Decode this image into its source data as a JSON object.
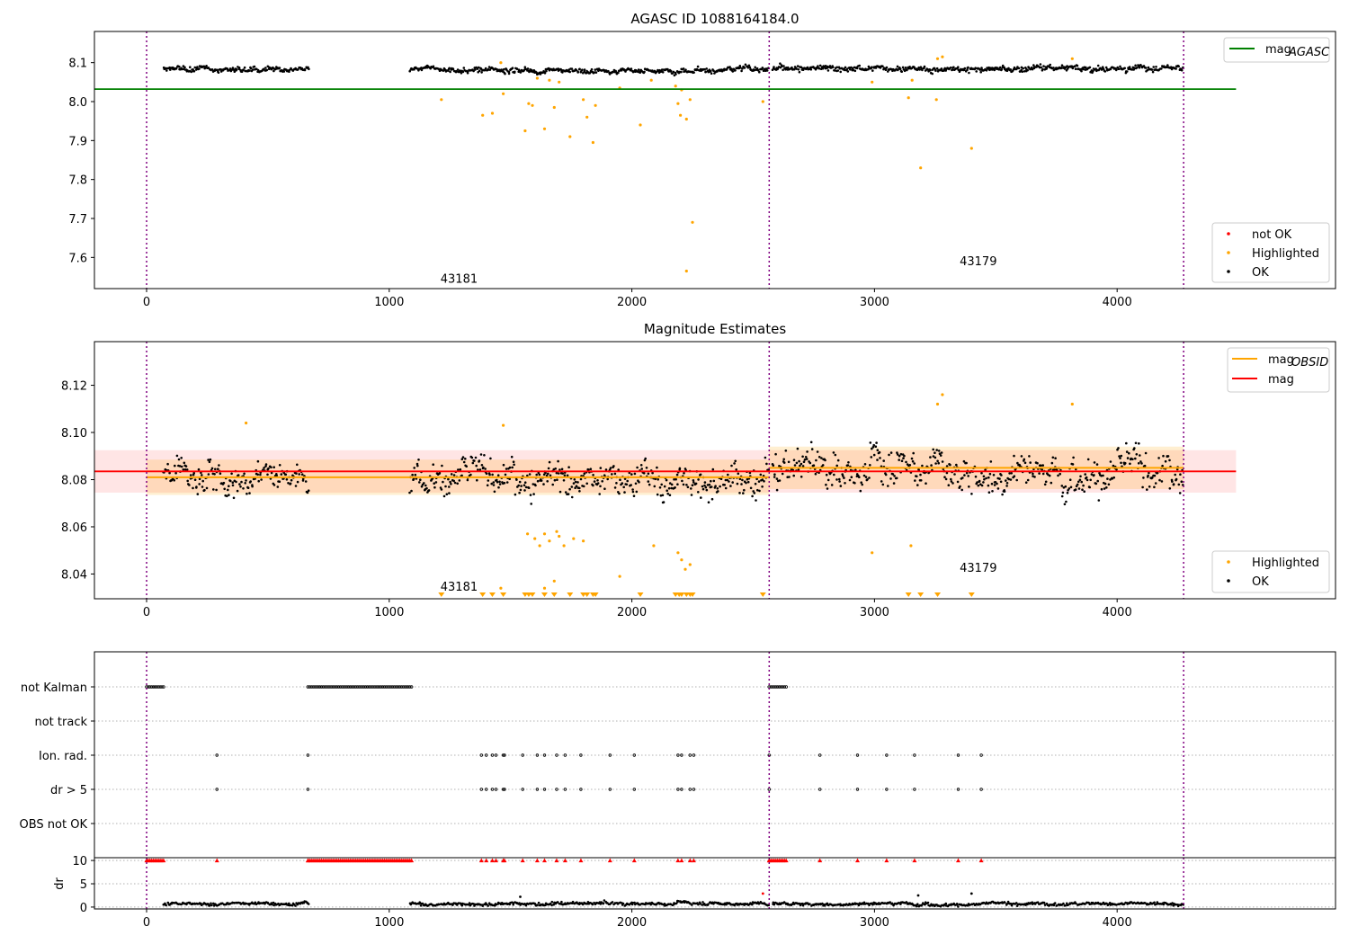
{
  "colors": {
    "ok": "#000000",
    "highlighted": "#ffa500",
    "not_ok": "#ff0000",
    "mag_agasc": "#008000",
    "mag_obsid": "#ffa500",
    "mag": "#ff0000",
    "obs_boundary": "#800080"
  },
  "chart_data": [
    {
      "type": "scatter",
      "title": "AGASC ID 1088164184.0",
      "xlim": [
        -215,
        4900
      ],
      "ylim": [
        7.52,
        8.18
      ],
      "xticks": [
        "0",
        "1000",
        "2000",
        "3000",
        "4000"
      ],
      "yticks": [
        "7.6",
        "7.7",
        "7.8",
        "7.9",
        "8.0",
        "8.1"
      ],
      "obs_boundaries": [
        0,
        2566,
        4274
      ],
      "annotations": [
        {
          "text": "43181",
          "x": 1200,
          "y": 7.535
        },
        {
          "text": "43179",
          "x": 3340,
          "y": 7.58
        }
      ],
      "hlines": [
        {
          "name": "mag_AGASC",
          "y": 8.032,
          "x0": -215,
          "x1": 4490
        }
      ],
      "ok_segments": [
        {
          "x0": 70,
          "x1": 670,
          "mean": 8.083,
          "noise": 0.007
        },
        {
          "x0": 1085,
          "x1": 2566,
          "mean": 8.08,
          "noise": 0.007
        },
        {
          "x0": 2580,
          "x1": 4274,
          "mean": 8.085,
          "noise": 0.008
        }
      ],
      "highlighted_points": [
        [
          1215,
          8.005
        ],
        [
          1385,
          7.965
        ],
        [
          1425,
          7.97
        ],
        [
          1460,
          8.1
        ],
        [
          1470,
          8.02
        ],
        [
          1560,
          7.925
        ],
        [
          1575,
          7.995
        ],
        [
          1590,
          7.99
        ],
        [
          1610,
          8.06
        ],
        [
          1640,
          7.93
        ],
        [
          1660,
          8.055
        ],
        [
          1680,
          7.985
        ],
        [
          1700,
          8.05
        ],
        [
          1745,
          7.91
        ],
        [
          1800,
          8.005
        ],
        [
          1815,
          7.96
        ],
        [
          1840,
          7.895
        ],
        [
          1850,
          7.99
        ],
        [
          1950,
          8.035
        ],
        [
          2035,
          7.94
        ],
        [
          2080,
          8.055
        ],
        [
          2180,
          8.04
        ],
        [
          2190,
          7.995
        ],
        [
          2200,
          7.965
        ],
        [
          2205,
          8.03
        ],
        [
          2225,
          7.955
        ],
        [
          2240,
          8.005
        ],
        [
          2250,
          7.69
        ],
        [
          2225,
          7.565
        ],
        [
          2540,
          8.0
        ],
        [
          2990,
          8.05
        ],
        [
          3140,
          8.01
        ],
        [
          3155,
          8.055
        ],
        [
          3255,
          8.005
        ],
        [
          3260,
          8.11
        ],
        [
          3280,
          8.115
        ],
        [
          3190,
          7.83
        ],
        [
          3400,
          7.88
        ],
        [
          3815,
          8.11
        ]
      ],
      "legend": {
        "line_entries": [
          {
            "label": "mag",
            "subscript": "AGASC"
          }
        ],
        "point_entries": [
          {
            "label": "not OK",
            "color": "#ff0000"
          },
          {
            "label": "Highlighted",
            "color": "#ffa500"
          },
          {
            "label": "OK",
            "color": "#000000"
          }
        ]
      }
    },
    {
      "type": "scatter",
      "title": "Magnitude Estimates",
      "xlim": [
        -215,
        4900
      ],
      "ylim": [
        8.0295,
        8.1385
      ],
      "xticks": [
        "0",
        "1000",
        "2000",
        "3000",
        "4000"
      ],
      "yticks": [
        "8.04",
        "8.06",
        "8.08",
        "8.10",
        "8.12"
      ],
      "obs_boundaries": [
        0,
        2566,
        4274
      ],
      "annotations": [
        {
          "text": "43181",
          "x": 1200,
          "y": 8.033
        },
        {
          "text": "43179",
          "x": 3340,
          "y": 8.041
        }
      ],
      "mag": {
        "value": 8.0835,
        "band": [
          8.0745,
          8.0925
        ],
        "x0": 0,
        "x1": 4490
      },
      "mag_obsid": [
        {
          "value": 8.081,
          "band": [
            8.0735,
            8.0885
          ],
          "x0": 0,
          "x1": 2566
        },
        {
          "value": 8.085,
          "band": [
            8.076,
            8.094
          ],
          "x0": 2566,
          "x1": 4274
        }
      ],
      "ok_segments": [
        {
          "x0": 70,
          "x1": 670,
          "mean": 8.082,
          "noise": 0.007
        },
        {
          "x0": 1085,
          "x1": 2566,
          "mean": 8.081,
          "noise": 0.007
        },
        {
          "x0": 2580,
          "x1": 4274,
          "mean": 8.084,
          "noise": 0.008
        }
      ],
      "highlighted_points": [
        [
          410,
          8.104
        ],
        [
          1460,
          8.034
        ],
        [
          1470,
          8.103
        ],
        [
          1570,
          8.057
        ],
        [
          1600,
          8.055
        ],
        [
          1620,
          8.052
        ],
        [
          1640,
          8.057
        ],
        [
          1660,
          8.054
        ],
        [
          1690,
          8.058
        ],
        [
          1700,
          8.056
        ],
        [
          1720,
          8.052
        ],
        [
          1760,
          8.055
        ],
        [
          1800,
          8.054
        ],
        [
          1950,
          8.039
        ],
        [
          2090,
          8.052
        ],
        [
          2190,
          8.049
        ],
        [
          2205,
          8.046
        ],
        [
          2220,
          8.042
        ],
        [
          2240,
          8.044
        ],
        [
          2990,
          8.049
        ],
        [
          3150,
          8.052
        ],
        [
          3260,
          8.112
        ],
        [
          3280,
          8.116
        ],
        [
          3815,
          8.112
        ],
        [
          1640,
          8.034
        ],
        [
          1680,
          8.037
        ]
      ],
      "clipped_markers_x": [
        1215,
        1385,
        1425,
        1470,
        1560,
        1575,
        1590,
        1640,
        1680,
        1745,
        1800,
        1815,
        1840,
        1850,
        2035,
        2180,
        2195,
        2205,
        2225,
        2240,
        2250,
        2540,
        3140,
        3190,
        3260,
        3400
      ],
      "legend": {
        "line_entries": [
          {
            "label": "mag",
            "subscript": "OBSID",
            "color": "#ffa500"
          },
          {
            "label": "mag",
            "subscript": "",
            "color": "#ff0000"
          }
        ],
        "point_entries": [
          {
            "label": "Highlighted",
            "color": "#ffa500"
          },
          {
            "label": "OK",
            "color": "#000000"
          }
        ]
      }
    },
    {
      "type": "scatter",
      "title": "",
      "xlim": [
        -215,
        4900
      ],
      "flag_rows": [
        "not Kalman",
        "not track",
        "Ion. rad.",
        "dr > 5",
        "OBS not OK"
      ],
      "obs_boundaries": [
        0,
        2566,
        4274
      ],
      "not_kalman_ranges": [
        [
          0,
          75
        ],
        [
          665,
          1095
        ],
        [
          2566,
          2640
        ]
      ],
      "ion_rad_x": [
        290,
        665,
        1380,
        1400,
        1425,
        1440,
        1470,
        1475,
        1550,
        1610,
        1640,
        1690,
        1725,
        1790,
        1910,
        2010,
        2190,
        2205,
        2240,
        2255,
        2566,
        2775,
        2930,
        3050,
        3165,
        3345,
        3440
      ],
      "dr_gt_5_x": [
        290,
        665,
        1380,
        1400,
        1425,
        1440,
        1470,
        1475,
        1550,
        1610,
        1640,
        1690,
        1725,
        1790,
        1910,
        2010,
        2190,
        2205,
        2240,
        2255,
        2566,
        2775,
        2930,
        3050,
        3165,
        3345,
        3440
      ]
    },
    {
      "type": "scatter",
      "title": "",
      "ylabel": "dr",
      "xlim": [
        -215,
        4900
      ],
      "ylim": [
        -0.4,
        10.6
      ],
      "xticks": [
        "0",
        "1000",
        "2000",
        "3000",
        "4000"
      ],
      "yticks": [
        "0",
        "5",
        "10"
      ],
      "obs_boundaries": [
        0,
        2566,
        4274
      ],
      "clipped_value": 10,
      "ok_segments": [
        {
          "x0": 70,
          "x1": 670,
          "mean": 0.7,
          "noise": 0.35
        },
        {
          "x0": 1085,
          "x1": 2566,
          "mean": 0.7,
          "noise": 0.35
        },
        {
          "x0": 2580,
          "x1": 4274,
          "mean": 0.7,
          "noise": 0.35
        }
      ],
      "outlier_points": [
        [
          2540,
          2.9
        ],
        [
          3180,
          2.5
        ],
        [
          3400,
          2.9
        ],
        [
          1540,
          2.2
        ]
      ],
      "clipped_ranges": [
        [
          0,
          75
        ],
        [
          665,
          1095
        ],
        [
          2566,
          2640
        ]
      ]
    }
  ]
}
